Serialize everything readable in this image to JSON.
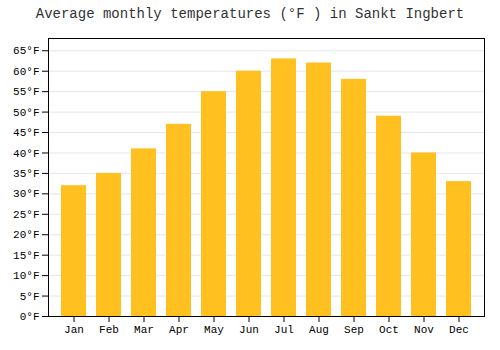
{
  "chart_data": {
    "type": "bar",
    "title": "Average monthly temperatures (°F ) in Sankt Ingbert",
    "categories": [
      "Jan",
      "Feb",
      "Mar",
      "Apr",
      "May",
      "Jun",
      "Jul",
      "Aug",
      "Sep",
      "Oct",
      "Nov",
      "Dec"
    ],
    "values": [
      32,
      35,
      41,
      47,
      55,
      60,
      63,
      62,
      58,
      49,
      40,
      33
    ],
    "color": "#FFC020",
    "ylim": [
      0,
      68
    ],
    "yticks": [
      {
        "value": 0,
        "label": "0°F"
      },
      {
        "value": 5,
        "label": "5°F"
      },
      {
        "value": 10,
        "label": "10°F"
      },
      {
        "value": 15,
        "label": "15°F"
      },
      {
        "value": 20,
        "label": "20°F"
      },
      {
        "value": 25,
        "label": "25°F"
      },
      {
        "value": 30,
        "label": "30°F"
      },
      {
        "value": 35,
        "label": "35°F"
      },
      {
        "value": 40,
        "label": "40°F"
      },
      {
        "value": 45,
        "label": "45°F"
      },
      {
        "value": 50,
        "label": "50°F"
      },
      {
        "value": 55,
        "label": "55°F"
      },
      {
        "value": 60,
        "label": "60°F"
      },
      {
        "value": 65,
        "label": "65°F"
      }
    ],
    "grid": true
  }
}
